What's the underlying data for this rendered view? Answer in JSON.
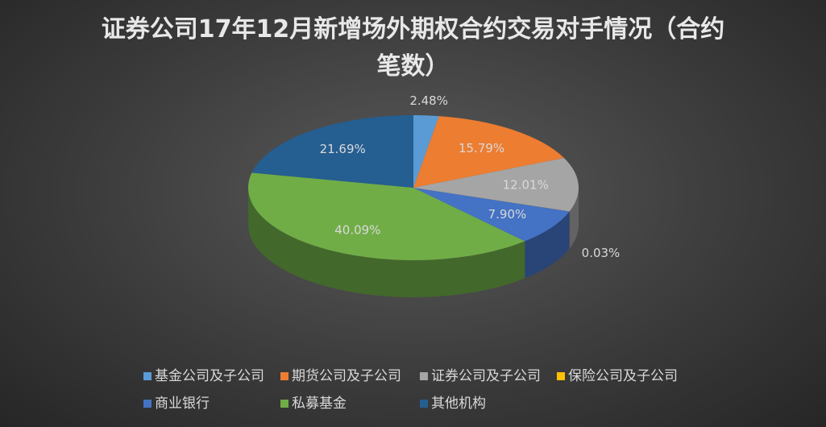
{
  "chart_data": {
    "type": "pie3d",
    "title": "证券公司17年12月新增场外期权合约交易对手情况（合约笔数）",
    "categories": [
      "基金公司及子公司",
      "期货公司及子公司",
      "证券公司及子公司",
      "保险公司及子公司",
      "商业银行",
      "私募基金",
      "其他机构"
    ],
    "values": [
      2.48,
      15.79,
      12.01,
      0.03,
      7.9,
      40.09,
      21.69
    ],
    "value_labels": [
      "2.48%",
      "15.79%",
      "12.01%",
      "0.03%",
      "7.90%",
      "40.09%",
      "21.69%"
    ],
    "colors": [
      "#5b9bd5",
      "#ed7d31",
      "#a5a5a5",
      "#ffc000",
      "#4472c4",
      "#70ad47",
      "#255e91"
    ],
    "legend": "bottom"
  }
}
